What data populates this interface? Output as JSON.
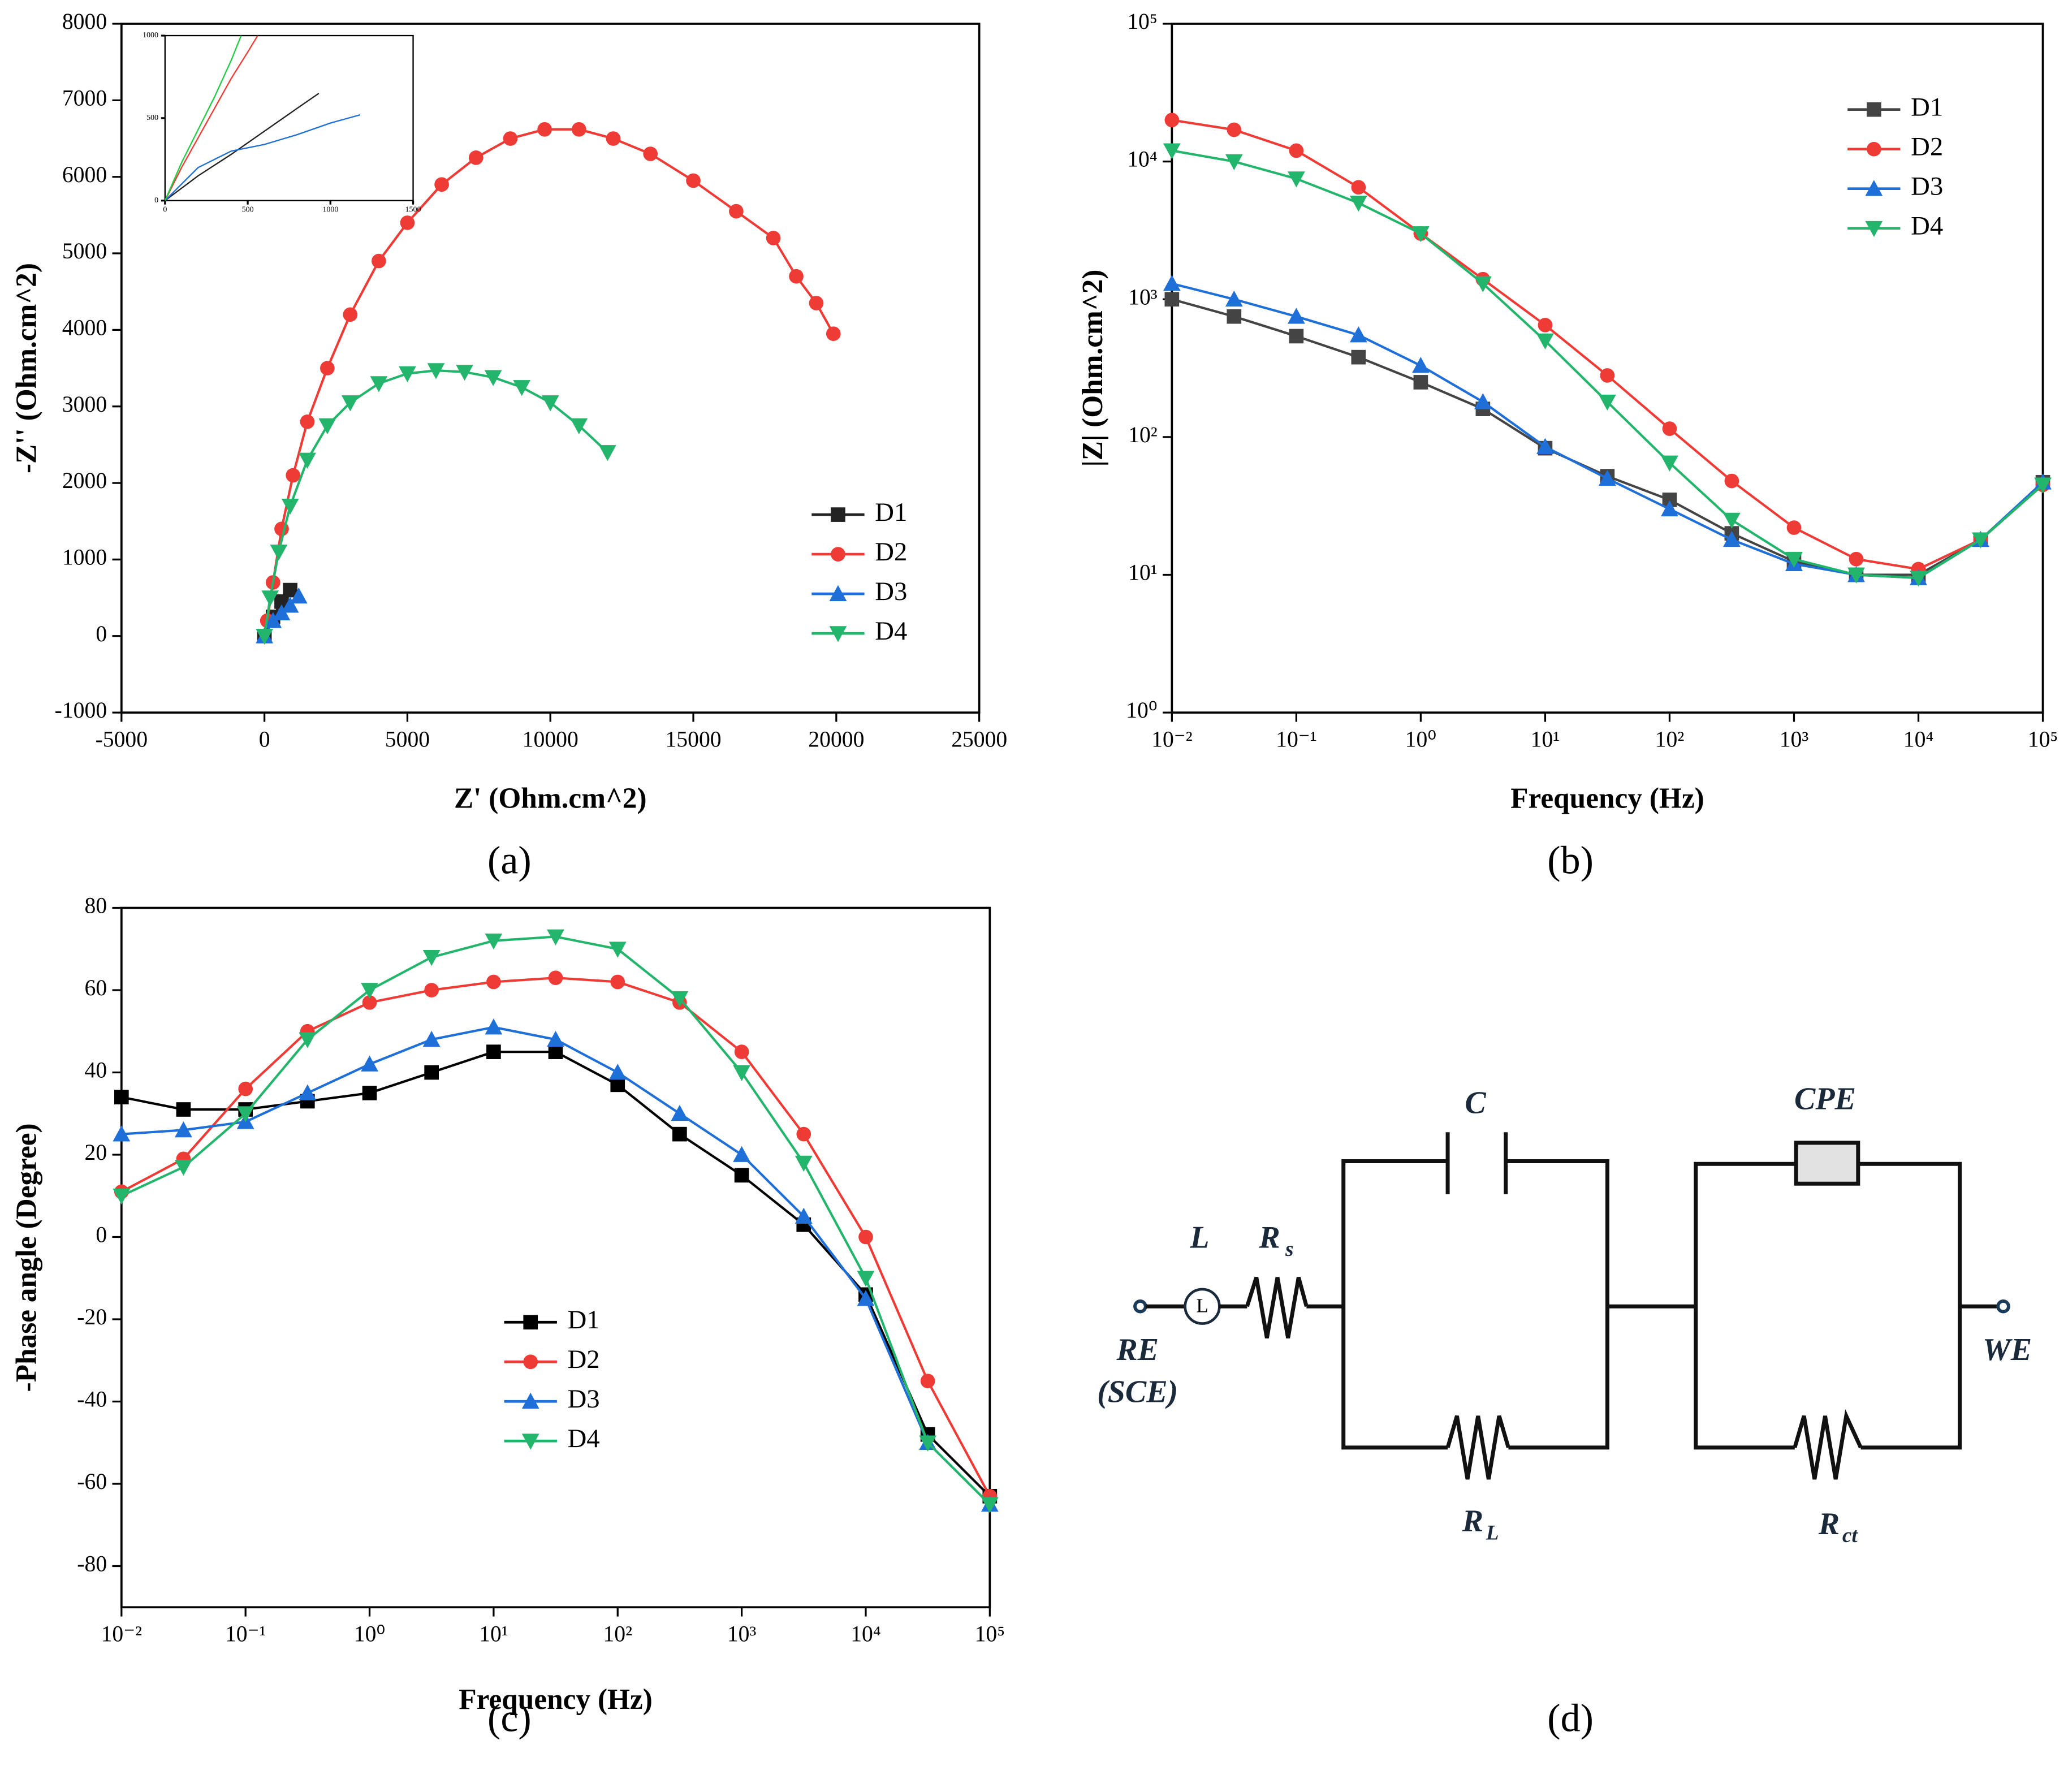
{
  "chart_data": [
    {
      "type": "line",
      "label": "(a)",
      "xlabel": "Z' (Ohm.cm^2)",
      "ylabel": "-Z'' (Ohm.cm^2)",
      "xlim": [
        -5000,
        25000
      ],
      "xticks": [
        -5000,
        0,
        5000,
        10000,
        15000,
        20000,
        25000
      ],
      "ylim": [
        -1000,
        8000
      ],
      "yticks": [
        -1000,
        0,
        1000,
        2000,
        3000,
        4000,
        5000,
        6000,
        7000,
        8000
      ],
      "legend": "right",
      "series": [
        {
          "name": "D1",
          "color": "#222222",
          "marker": "square",
          "x": [
            0,
            300,
            600,
            900
          ],
          "values": [
            0,
            250,
            450,
            600
          ]
        },
        {
          "name": "D2",
          "color": "#ee3b36",
          "marker": "circle",
          "x": [
            100,
            300,
            600,
            1000,
            1500,
            2200,
            3000,
            4000,
            5000,
            6200,
            7400,
            8600,
            9800,
            11000,
            12200,
            13500,
            15000,
            16500,
            17800,
            18600,
            19300,
            19900
          ],
          "values": [
            200,
            700,
            1400,
            2100,
            2800,
            3500,
            4200,
            4900,
            5400,
            5900,
            6250,
            6500,
            6620,
            6620,
            6500,
            6300,
            5950,
            5550,
            5200,
            4700,
            4350,
            3950
          ]
        },
        {
          "name": "D3",
          "color": "#1f6fd8",
          "marker": "triangle-up",
          "x": [
            0,
            300,
            600,
            900,
            1200
          ],
          "values": [
            0,
            200,
            300,
            400,
            520
          ]
        },
        {
          "name": "D4",
          "color": "#23b56b",
          "marker": "triangle-down",
          "x": [
            0,
            200,
            500,
            900,
            1500,
            2200,
            3000,
            4000,
            5000,
            6000,
            7000,
            8000,
            9000,
            10000,
            11000,
            12000
          ],
          "values": [
            0,
            500,
            1100,
            1700,
            2300,
            2750,
            3050,
            3300,
            3430,
            3470,
            3450,
            3380,
            3250,
            3050,
            2750,
            2400
          ]
        }
      ]
    },
    {
      "type": "line",
      "xlim": [
        0,
        1500
      ],
      "xticks": [
        0,
        500,
        1000,
        1500
      ],
      "ylim": [
        0,
        1000
      ],
      "yticks": [
        0,
        500,
        1000
      ],
      "series": [
        {
          "name": "D1",
          "color": "#222222",
          "x": [
            0,
            200,
            400,
            600,
            800,
            930
          ],
          "values": [
            0,
            150,
            280,
            420,
            560,
            650
          ]
        },
        {
          "name": "D2",
          "color": "#ee3b36",
          "x": [
            0,
            100,
            200,
            300,
            400,
            500,
            560
          ],
          "values": [
            0,
            200,
            380,
            560,
            740,
            900,
            1000
          ]
        },
        {
          "name": "D3",
          "color": "#1f6fd8",
          "x": [
            0,
            200,
            400,
            600,
            800,
            1000,
            1180
          ],
          "values": [
            0,
            200,
            300,
            340,
            400,
            470,
            520
          ]
        },
        {
          "name": "D4",
          "color": "#22cc44",
          "x": [
            0,
            100,
            200,
            300,
            400,
            460
          ],
          "values": [
            0,
            230,
            430,
            630,
            850,
            1000
          ]
        }
      ]
    },
    {
      "type": "line",
      "label": "(b)",
      "xlabel": "Frequency (Hz)",
      "ylabel": "|Z| (Ohm.cm^2)",
      "xlog": true,
      "ylog": true,
      "xlim": [
        0.01,
        100000
      ],
      "xticks": [
        {
          "value": 0.01,
          "label": "10⁻²"
        },
        {
          "value": 0.1,
          "label": "10⁻¹"
        },
        {
          "value": 1,
          "label": "10⁰"
        },
        {
          "value": 10,
          "label": "10¹"
        },
        {
          "value": 100,
          "label": "10²"
        },
        {
          "value": 1000,
          "label": "10³"
        },
        {
          "value": 10000,
          "label": "10⁴"
        },
        {
          "value": 100000,
          "label": "10⁵"
        }
      ],
      "ylim": [
        1,
        100000
      ],
      "yticks": [
        {
          "value": 1,
          "label": "10⁰"
        },
        {
          "value": 10,
          "label": "10¹"
        },
        {
          "value": 100,
          "label": "10²"
        },
        {
          "value": 1000,
          "label": "10³"
        },
        {
          "value": 10000,
          "label": "10⁴"
        },
        {
          "value": 100000,
          "label": "10⁵"
        }
      ],
      "legend": "upper right",
      "x": [
        0.01,
        0.0316,
        0.1,
        0.316,
        1,
        3.16,
        10,
        31.6,
        100,
        316,
        1000,
        3162,
        10000,
        31623,
        100000
      ],
      "series": [
        {
          "name": "D1",
          "color": "#444444",
          "marker": "square",
          "values": [
            1000,
            750,
            540,
            380,
            250,
            160,
            83,
            52,
            35,
            20,
            12.5,
            10,
            10,
            18,
            47
          ]
        },
        {
          "name": "D2",
          "color": "#ee3b36",
          "marker": "circle",
          "values": [
            20000,
            17000,
            12000,
            6500,
            3000,
            1400,
            650,
            280,
            115,
            48,
            22,
            13,
            11,
            18,
            45
          ]
        },
        {
          "name": "D3",
          "color": "#1f6fd8",
          "marker": "triangle-up",
          "values": [
            1300,
            1000,
            750,
            550,
            330,
            180,
            85,
            50,
            30,
            18,
            12,
            10,
            9.5,
            18,
            47
          ]
        },
        {
          "name": "D4",
          "color": "#23b56b",
          "marker": "triangle-down",
          "values": [
            12000,
            10000,
            7500,
            5000,
            3000,
            1300,
            500,
            180,
            65,
            25,
            13,
            10,
            9.5,
            18,
            45
          ]
        }
      ]
    },
    {
      "type": "line",
      "label": "(c)",
      "xlabel": "Frequency (Hz)",
      "ylabel": "-Phase angle (Degree)",
      "xlog": true,
      "xlim": [
        0.01,
        100000
      ],
      "xticks": [
        {
          "value": 0.01,
          "label": "10⁻²"
        },
        {
          "value": 0.1,
          "label": "10⁻¹"
        },
        {
          "value": 1,
          "label": "10⁰"
        },
        {
          "value": 10,
          "label": "10¹"
        },
        {
          "value": 100,
          "label": "10²"
        },
        {
          "value": 1000,
          "label": "10³"
        },
        {
          "value": 10000,
          "label": "10⁴"
        },
        {
          "value": 100000,
          "label": "10⁵"
        }
      ],
      "ylim": [
        -90,
        80
      ],
      "yticks": [
        -80,
        -60,
        -40,
        -20,
        0,
        20,
        40,
        60,
        80
      ],
      "legend": "lower center",
      "x": [
        0.01,
        0.0316,
        0.1,
        0.316,
        1,
        3.16,
        10,
        31.6,
        100,
        316,
        1000,
        3162,
        10000,
        31623,
        100000
      ],
      "series": [
        {
          "name": "D1",
          "color": "#000000",
          "marker": "square",
          "values": [
            34,
            31,
            31,
            33,
            35,
            40,
            45,
            45,
            37,
            25,
            15,
            3,
            -14,
            -48,
            -63
          ]
        },
        {
          "name": "D2",
          "color": "#ee3b36",
          "marker": "circle",
          "values": [
            11,
            19,
            36,
            50,
            57,
            60,
            62,
            63,
            62,
            57,
            45,
            25,
            0,
            -35,
            -63
          ]
        },
        {
          "name": "D3",
          "color": "#1f6fd8",
          "marker": "triangle-up",
          "values": [
            25,
            26,
            28,
            35,
            42,
            48,
            51,
            48,
            40,
            30,
            20,
            5,
            -15,
            -50,
            -65
          ]
        },
        {
          "name": "D4",
          "color": "#23b56b",
          "marker": "triangle-down",
          "values": [
            10,
            17,
            30,
            48,
            60,
            68,
            72,
            73,
            70,
            58,
            40,
            18,
            -10,
            -50,
            -65
          ]
        }
      ]
    }
  ],
  "diagram": {
    "label": "(d)",
    "elements": [
      {
        "name": "C"
      },
      {
        "name": "CPE"
      },
      {
        "name": "L",
        "symbol": "L"
      },
      {
        "name": "R",
        "sub": "s"
      },
      {
        "name": "R",
        "sub": "L"
      },
      {
        "name": "R",
        "sub": "ct"
      }
    ],
    "terminals": [
      {
        "label": "RE",
        "note": "(SCE)"
      },
      {
        "label": "WE"
      }
    ]
  }
}
